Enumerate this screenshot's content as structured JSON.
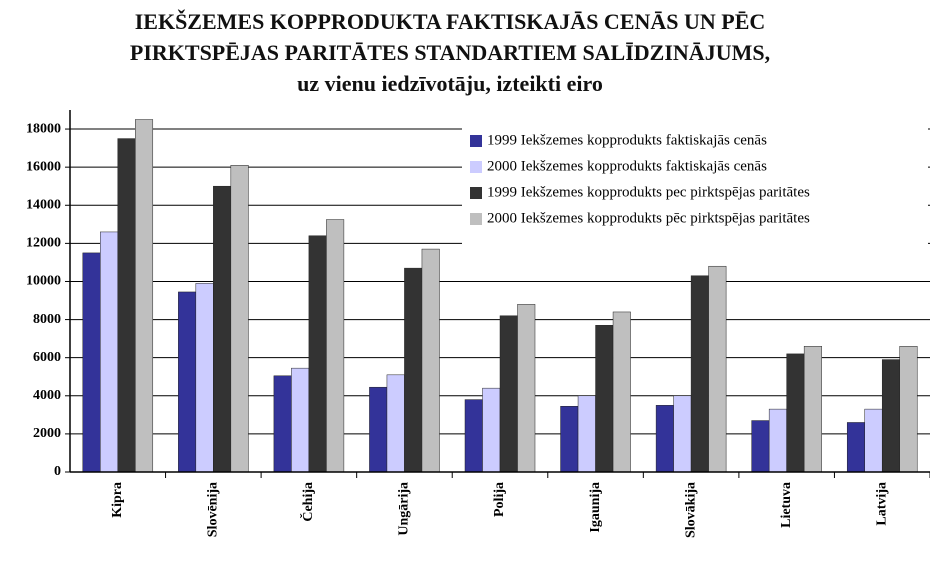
{
  "chart_data": {
    "type": "bar",
    "title": "IEKŠZEMES KOPPRODUKTA FAKTISKAJĀS CENĀS UN PĒC PIRKTSPĒJAS PARITĀTES STANDARTIEM SALĪDZINĀJUMS, uz vienu iedzīvotāju, izteikti eiro",
    "categories": [
      "Kipra",
      "Slovēnija",
      "Čehija",
      "Ungārija",
      "Polija",
      "Igaunija",
      "Slovākija",
      "Lietuva",
      "Latvija"
    ],
    "series": [
      {
        "name": "1999 Iekšzemes kopprodukts faktiskajās cenās",
        "color": "#333399",
        "values": [
          11500,
          9450,
          5050,
          4450,
          3800,
          3450,
          3500,
          2700,
          2600
        ]
      },
      {
        "name": "2000 Iekšzemes kopprodukts faktiskajās cenās",
        "color": "#ccccff",
        "values": [
          12600,
          9900,
          5450,
          5100,
          4400,
          4000,
          4000,
          3300,
          3300
        ]
      },
      {
        "name": "1999 Iekšzemes kopprodukts pec pirktspējas paritātes",
        "color": "#333333",
        "values": [
          17500,
          15000,
          12400,
          10700,
          8200,
          7700,
          10300,
          6200,
          5900
        ]
      },
      {
        "name": "2000 Iekšzemes kopprodukts pēc pirktspējas paritātes",
        "color": "#bfbfbf",
        "values": [
          18500,
          16100,
          13250,
          11700,
          8800,
          8400,
          10800,
          6600,
          6600
        ]
      }
    ],
    "ylim": [
      0,
      19000
    ],
    "yticks": [
      0,
      2000,
      4000,
      6000,
      8000,
      10000,
      12000,
      14000,
      16000,
      18000
    ],
    "grid": true,
    "legend": "top-right"
  }
}
